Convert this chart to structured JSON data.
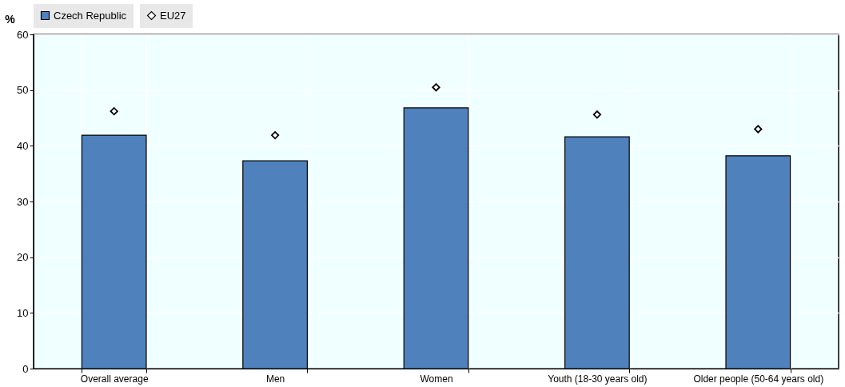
{
  "chart_data": {
    "type": "bar",
    "ylabel": "%",
    "categories": [
      "Overall average",
      "Men",
      "Women",
      "Youth (18-30 years old)",
      "Older people (50-64 years old)"
    ],
    "series": [
      {
        "name": "Czech Republic",
        "color": "#4f81bd",
        "values": [
          41.9,
          37.3,
          46.8,
          41.6,
          38.2
        ]
      },
      {
        "name": "EU27",
        "type": "scatter",
        "color": "#000000",
        "values": [
          46.2,
          41.9,
          50.5,
          45.6,
          43.0
        ]
      }
    ],
    "ylim": [
      0,
      60
    ],
    "yticks": [
      0,
      10,
      20,
      30,
      40,
      50,
      60
    ],
    "grid": true,
    "legend": "top",
    "marker": "diamond"
  }
}
